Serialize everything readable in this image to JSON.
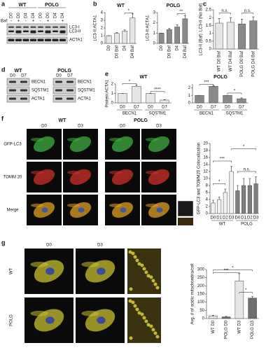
{
  "panels": {
    "a": {
      "letter": "a",
      "groups": [
        "WT",
        "POLG"
      ],
      "lanes": [
        "D0",
        "D0",
        "D4",
        "D4",
        "D0",
        "D0",
        "D4",
        "D4"
      ],
      "baf_label": "Baf:",
      "baf": [
        "-",
        "+",
        "-",
        "+",
        "-",
        "+",
        "-",
        "+"
      ],
      "bands": [
        "LC3-I",
        "LC3-II",
        "ACTA1"
      ]
    },
    "b": {
      "letter": "b"
    },
    "c": {
      "letter": "c"
    },
    "d": {
      "letter": "d",
      "groups": [
        "WT",
        "POLG"
      ],
      "lanes": [
        "D0",
        "D7"
      ],
      "bands": [
        "BECN1",
        "SQSTM1",
        "ACTA1"
      ]
    },
    "e": {
      "letter": "e"
    },
    "f": {
      "letter": "f",
      "groups": [
        "WT",
        "POLG"
      ],
      "columns": [
        "D0",
        "D3",
        "D0",
        "D3"
      ],
      "rows": [
        "GFP-LC3",
        "TOMM 20",
        "Merge"
      ]
    },
    "g": {
      "letter": "g",
      "columns": [
        "D0",
        "D3"
      ],
      "rows": [
        "WT",
        "POLG"
      ]
    }
  },
  "chart_data": [
    {
      "type": "bar",
      "title": "WT",
      "ylabel": "LC3-II:ACTA1",
      "categories": [
        "D0",
        "D0 Baf",
        "D4",
        "D4 Baf"
      ],
      "values": [
        1,
        1.3,
        1.6,
        3.3
      ],
      "errors": [
        0,
        0.1,
        0.15,
        0.6
      ],
      "colors": [
        "#e6e6e6",
        "#e6e6e6",
        "#e6e6e6",
        "#e6e6e6"
      ],
      "ylim": [
        0,
        4
      ],
      "yticks": [
        0,
        1,
        2,
        3,
        4
      ],
      "annotations": [
        "*"
      ]
    },
    {
      "type": "bar",
      "title": "POLG",
      "ylabel": "LC3-II:ACTA1",
      "categories": [
        "D0",
        "D0 Baf",
        "D4",
        "D4 Baf"
      ],
      "values": [
        1,
        1.35,
        1.6,
        2.4
      ],
      "errors": [
        0,
        0.1,
        0.2,
        0.3
      ],
      "colors": [
        "#8a8a8a",
        "#8a8a8a",
        "#8a8a8a",
        "#8a8a8a"
      ],
      "ylim": [
        0,
        3
      ],
      "yticks": [
        0,
        1,
        2,
        3
      ],
      "annotations": [
        "**"
      ]
    },
    {
      "type": "bar",
      "ylabel": "LC3-II (Baf): LC3-II (No Baf)",
      "categories": [
        "WT D0 Baf",
        "WT D4 Baf",
        "POLG D0 Baf",
        "POLG D4 Baf"
      ],
      "values": [
        1.65,
        1.7,
        1.6,
        1.8
      ],
      "errors": [
        0.3,
        0.3,
        0.3,
        0.25
      ],
      "colors": [
        "#e6e6e6",
        "#e6e6e6",
        "#8a8a8a",
        "#8a8a8a"
      ],
      "ylim": [
        0,
        2.5
      ],
      "yticks": [
        0,
        0.5,
        1,
        1.5,
        2,
        2.5
      ],
      "annotations": [
        "n.s.",
        "n.s."
      ]
    },
    {
      "type": "bar",
      "title": "WT",
      "ylabel": "Protein:ACTA1",
      "categories": [
        "D0",
        "D7",
        "D0",
        "D7"
      ],
      "group_labels": [
        "BECN1",
        "SQSTM1"
      ],
      "values": [
        1,
        1.75,
        1,
        0.3
      ],
      "errors": [
        0,
        0.15,
        0,
        0.05
      ],
      "colors": [
        "#e6e6e6",
        "#e6e6e6",
        "#e6e6e6",
        "#e6e6e6"
      ],
      "ylim": [
        0,
        2
      ],
      "yticks": [
        0,
        1,
        2
      ],
      "annotations": [
        "*",
        "****"
      ]
    },
    {
      "type": "bar",
      "title": "POLG",
      "categories": [
        "D0",
        "D7",
        "D0",
        "D7"
      ],
      "group_labels": [
        "BECN1",
        "SQSTM1"
      ],
      "values": [
        1,
        2.2,
        1,
        0.55
      ],
      "errors": [
        0,
        0.1,
        0,
        0.1
      ],
      "colors": [
        "#8a8a8a",
        "#8a8a8a",
        "#8a8a8a",
        "#8a8a8a"
      ],
      "ylim": [
        0,
        2.5
      ],
      "yticks": [
        0,
        1,
        2
      ],
      "annotations": [
        "***",
        "*"
      ]
    },
    {
      "type": "bar",
      "ylabel": "GFP-LC3 and TOMM20 Colocalization",
      "categories": [
        "D0",
        "D1",
        "D2",
        "D3",
        "D0",
        "D1",
        "D2",
        "D3"
      ],
      "group_labels": [
        "WT",
        "POLG"
      ],
      "values": [
        3,
        4,
        6,
        12,
        6.5,
        8,
        8,
        8.5
      ],
      "errors": [
        0.8,
        0.7,
        1,
        1.5,
        1.5,
        2,
        2,
        2
      ],
      "colors": [
        "#f2f2f2",
        "#f2f2f2",
        "#f2f2f2",
        "#f2f2f2",
        "#7f7f7f",
        "#7f7f7f",
        "#7f7f7f",
        "#7f7f7f"
      ],
      "ylim": [
        0,
        20
      ],
      "yticks": [
        0,
        2,
        4,
        6,
        8,
        10,
        12,
        14,
        16,
        18,
        20
      ],
      "annotations": [
        "***",
        "*",
        "*",
        "n.s."
      ]
    },
    {
      "type": "bar",
      "ylabel": "Avg. # of acidic mitochondria/cell",
      "categories": [
        "WT D0",
        "POLG D0",
        "WT D3",
        "POLG D3"
      ],
      "values": [
        15,
        10,
        230,
        125
      ],
      "errors": [
        5,
        3,
        45,
        10
      ],
      "colors": [
        "#e6e6e6",
        "#6e6e6e",
        "#e6e6e6",
        "#6e6e6e"
      ],
      "ylim": [
        0,
        300
      ],
      "yticks": [
        0,
        50,
        100,
        150,
        200,
        250,
        300
      ],
      "annotations": [
        "***",
        "*",
        "*"
      ]
    }
  ]
}
